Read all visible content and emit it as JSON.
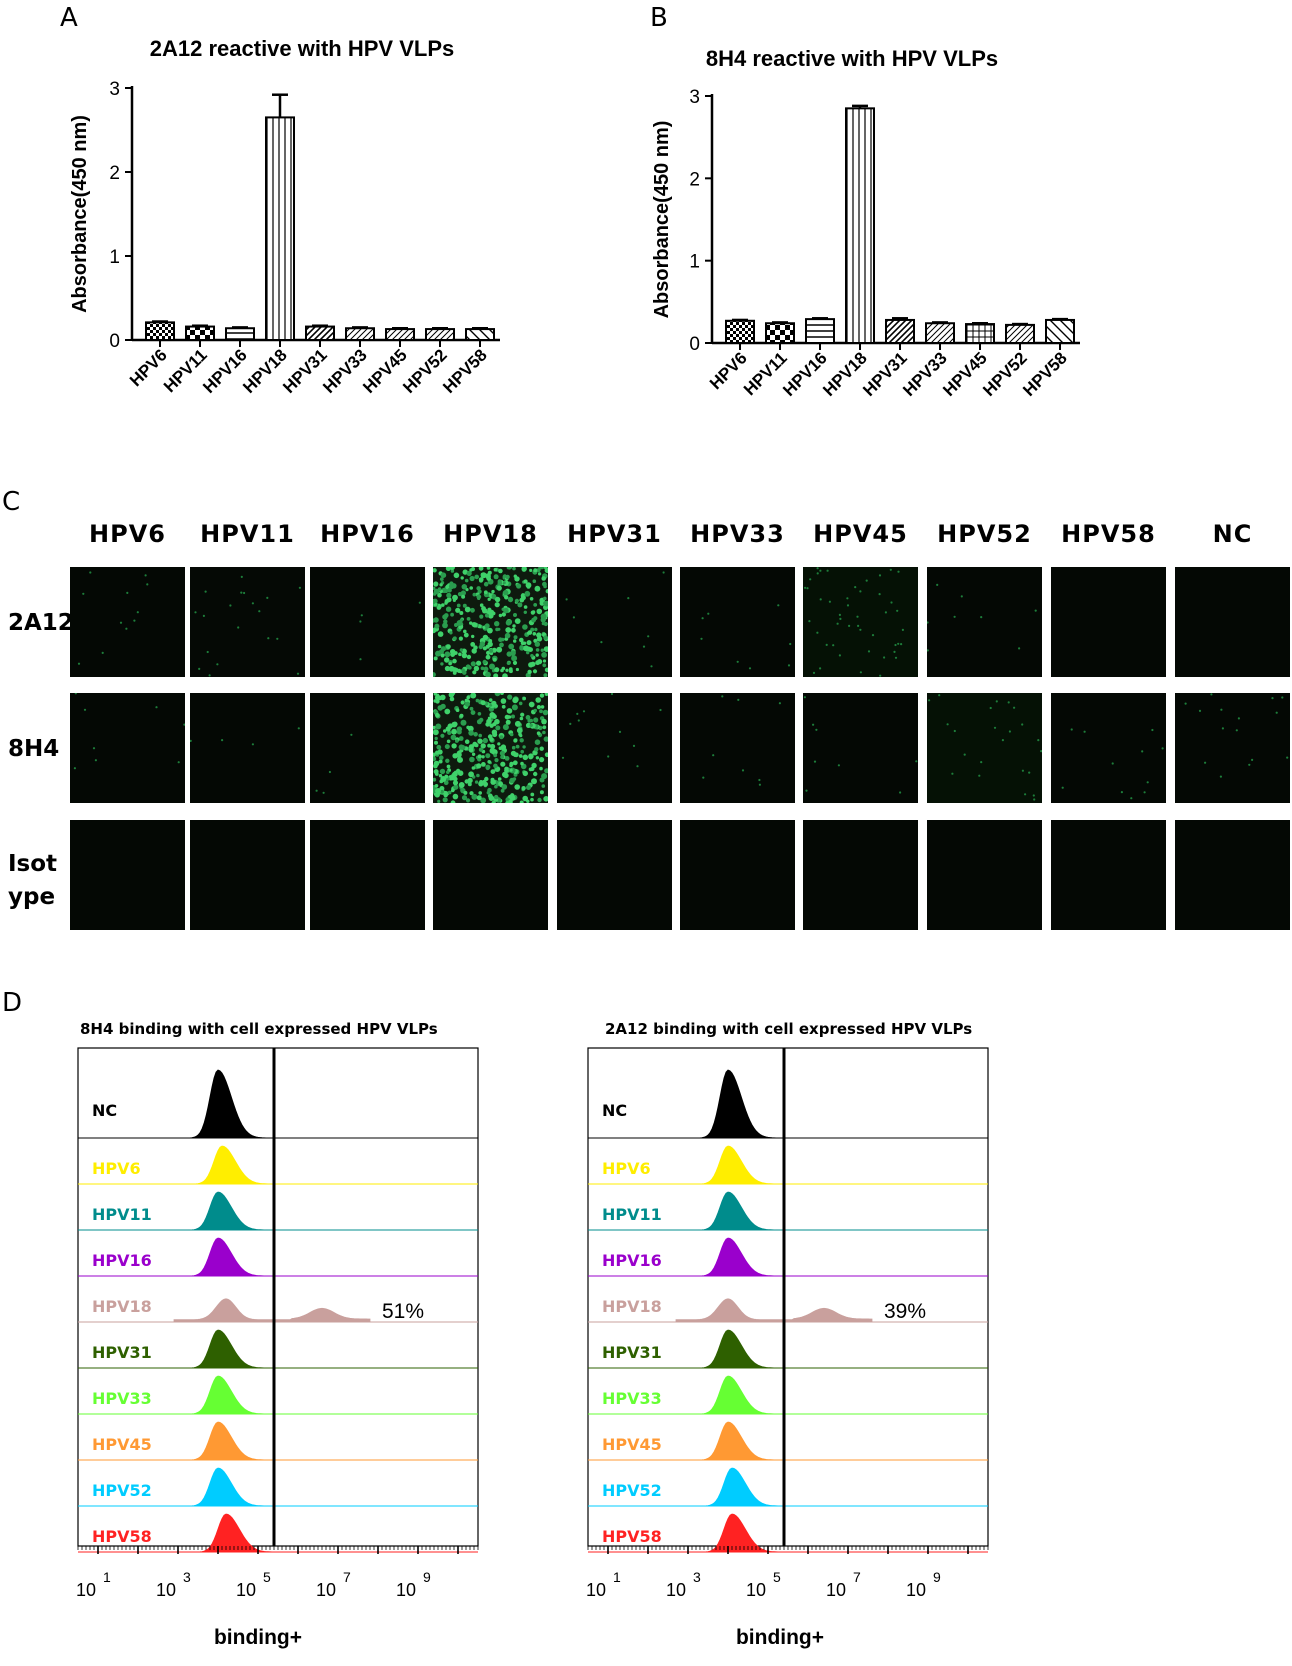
{
  "panels": {
    "a": "A",
    "b": "B",
    "c": "C",
    "d": "D"
  },
  "chart_data": [
    {
      "type": "bar",
      "title": "2A12 reactive with HPV VLPs",
      "ylabel": "Absorbance(450 nm)",
      "xlabel": "",
      "categories": [
        "HPV6",
        "HPV11",
        "HPV16",
        "HPV18",
        "HPV31",
        "HPV33",
        "HPV45",
        "HPV52",
        "HPV58"
      ],
      "values": [
        0.21,
        0.16,
        0.14,
        2.65,
        0.16,
        0.14,
        0.13,
        0.13,
        0.13
      ],
      "errors": [
        0.01,
        0.01,
        0.01,
        0.27,
        0.01,
        0.01,
        0.01,
        0.01,
        0.01
      ],
      "ylim": [
        0,
        3
      ],
      "yticks": [
        "0",
        "1",
        "2",
        "3"
      ],
      "patterns": [
        "checker",
        "checker-big",
        "hstripes",
        "vstripes",
        "diag-dense",
        "diag",
        "diag",
        "diag",
        "diag-back"
      ]
    },
    {
      "type": "bar",
      "title": "8H4 reactive with HPV VLPs",
      "ylabel": "Absorbance(450 nm)",
      "xlabel": "",
      "categories": [
        "HPV6",
        "HPV11",
        "HPV16",
        "HPV18",
        "HPV31",
        "HPV33",
        "HPV45",
        "HPV52",
        "HPV58"
      ],
      "values": [
        0.27,
        0.24,
        0.29,
        2.85,
        0.28,
        0.24,
        0.23,
        0.22,
        0.28
      ],
      "errors": [
        0.01,
        0.01,
        0.01,
        0.03,
        0.02,
        0.01,
        0.01,
        0.01,
        0.01
      ],
      "ylim": [
        0,
        3
      ],
      "yticks": [
        "0",
        "1",
        "2",
        "3"
      ],
      "patterns": [
        "checker",
        "checker-big",
        "hstripes",
        "vstripes",
        "diag-dense",
        "diag",
        "grid",
        "diag",
        "diag-back"
      ]
    },
    {
      "type": "area",
      "title": "8H4 binding with  cell expressed HPV VLPs",
      "xlabel": "binding+",
      "xscale": "log",
      "xticks": [
        "1",
        "3",
        "5",
        "7",
        "9"
      ],
      "xtick_base": "10",
      "gate_log_x": 5.4,
      "series": [
        {
          "name": "NC",
          "color": "#000000",
          "peak_log_x": 4.0,
          "fraction_positive": null
        },
        {
          "name": "HPV6",
          "color": "#ffee00",
          "peak_log_x": 4.1,
          "fraction_positive": null
        },
        {
          "name": "HPV11",
          "color": "#008c8c",
          "peak_log_x": 4.0,
          "fraction_positive": null
        },
        {
          "name": "HPV16",
          "color": "#9a00cc",
          "peak_log_x": 4.0,
          "fraction_positive": null
        },
        {
          "name": "HPV18",
          "color": "#c9a09d",
          "peak_log_x": 4.2,
          "fraction_positive": "51%"
        },
        {
          "name": "HPV31",
          "color": "#2e6000",
          "peak_log_x": 4.0,
          "fraction_positive": null
        },
        {
          "name": "HPV33",
          "color": "#66ff33",
          "peak_log_x": 4.0,
          "fraction_positive": null
        },
        {
          "name": "HPV45",
          "color": "#ff9933",
          "peak_log_x": 4.0,
          "fraction_positive": null
        },
        {
          "name": "HPV52",
          "color": "#00ccff",
          "peak_log_x": 4.0,
          "fraction_positive": null
        },
        {
          "name": "HPV58",
          "color": "#ff2222",
          "peak_log_x": 4.2,
          "fraction_positive": null
        }
      ]
    },
    {
      "type": "area",
      "title": "2A12 binding with cell expressed HPV VLPs",
      "xlabel": "binding+",
      "xscale": "log",
      "xticks": [
        "1",
        "3",
        "5",
        "7",
        "9"
      ],
      "xtick_base": "10",
      "gate_log_x": 5.4,
      "series": [
        {
          "name": "NC",
          "color": "#000000",
          "peak_log_x": 4.0,
          "fraction_positive": null
        },
        {
          "name": "HPV6",
          "color": "#ffee00",
          "peak_log_x": 4.0,
          "fraction_positive": null
        },
        {
          "name": "HPV11",
          "color": "#008c8c",
          "peak_log_x": 4.0,
          "fraction_positive": null
        },
        {
          "name": "HPV16",
          "color": "#9a00cc",
          "peak_log_x": 4.0,
          "fraction_positive": null
        },
        {
          "name": "HPV18",
          "color": "#c9a09d",
          "peak_log_x": 4.0,
          "fraction_positive": "39%"
        },
        {
          "name": "HPV31",
          "color": "#2e6000",
          "peak_log_x": 4.0,
          "fraction_positive": null
        },
        {
          "name": "HPV33",
          "color": "#66ff33",
          "peak_log_x": 4.0,
          "fraction_positive": null
        },
        {
          "name": "HPV45",
          "color": "#ff9933",
          "peak_log_x": 4.0,
          "fraction_positive": null
        },
        {
          "name": "HPV52",
          "color": "#00ccff",
          "peak_log_x": 4.1,
          "fraction_positive": null
        },
        {
          "name": "HPV58",
          "color": "#ff2222",
          "peak_log_x": 4.1,
          "fraction_positive": null
        }
      ]
    }
  ],
  "imaging": {
    "columns": [
      "HPV6",
      "HPV11",
      "HPV16",
      "HPV18",
      "HPV31",
      "HPV33",
      "HPV45",
      "HPV52",
      "HPV58",
      "NC"
    ],
    "rows": [
      {
        "label_lines": [
          "2A12"
        ],
        "fluorescence": [
          0.03,
          0.05,
          0.01,
          1.0,
          0.02,
          0.02,
          0.12,
          0.02,
          0.0,
          0.0
        ]
      },
      {
        "label_lines": [
          "8H4"
        ],
        "fluorescence": [
          0.02,
          0.01,
          0.01,
          1.0,
          0.03,
          0.02,
          0.02,
          0.06,
          0.03,
          0.04
        ]
      },
      {
        "label_lines": [
          "Isot",
          "ype"
        ],
        "fluorescence": [
          0,
          0,
          0,
          0,
          0,
          0,
          0,
          0,
          0,
          0
        ]
      }
    ]
  }
}
